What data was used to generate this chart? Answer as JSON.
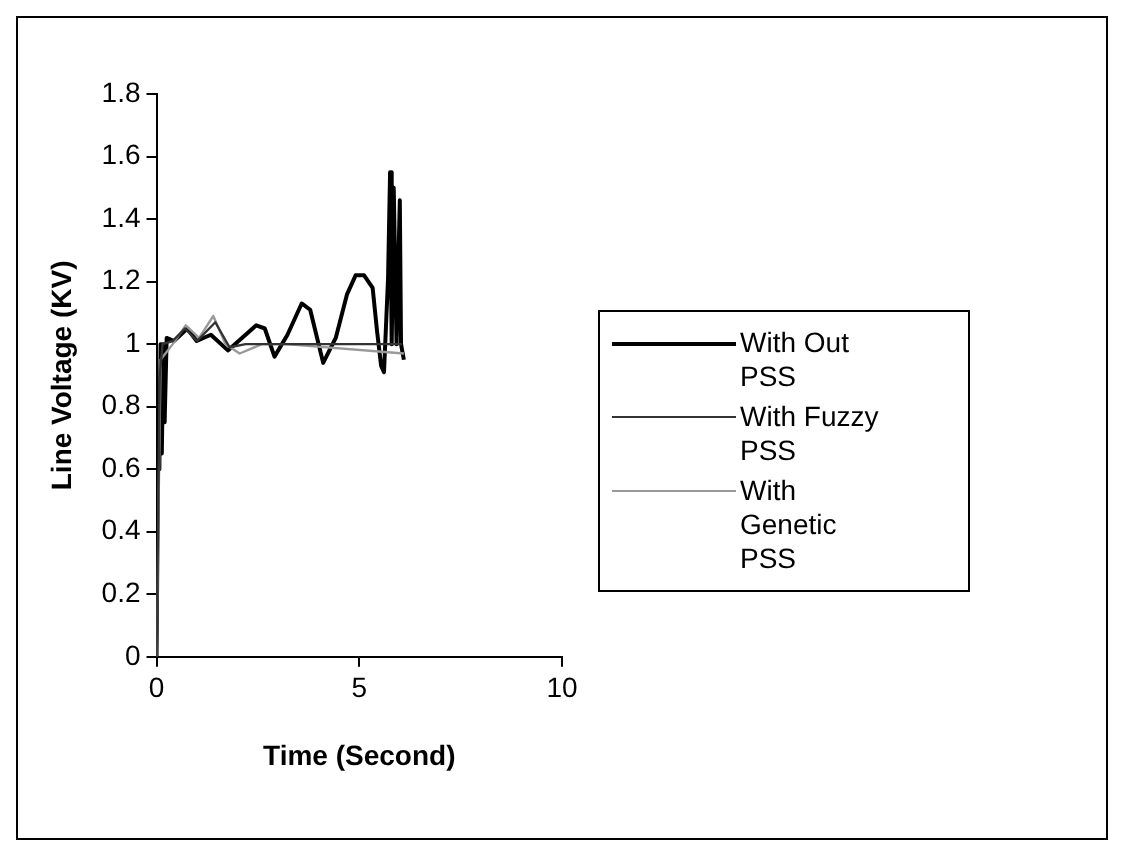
{
  "chart_data": {
    "type": "line",
    "xlabel": "Time (Second)",
    "ylabel": "Line Voltage (KV)",
    "xlim": [
      0,
      10
    ],
    "xticks": [
      0,
      5,
      10
    ],
    "ylim": [
      0,
      1.8
    ],
    "yticks": [
      0,
      0.2,
      0.4,
      0.6,
      0.8,
      1,
      1.2,
      1.4,
      1.6,
      1.8
    ],
    "grid": false,
    "legend": "right",
    "marker": "none",
    "series": [
      {
        "name": "With Out PSS",
        "color": "#000000",
        "x": [
          0,
          0.05,
          0.07,
          0.1,
          0.13,
          0.17,
          0.2,
          0.25,
          0.43,
          0.76,
          0.99,
          1.34,
          1.76,
          2.46,
          2.67,
          2.91,
          3.23,
          3.58,
          3.79,
          4.11,
          4.42,
          4.7,
          4.91,
          5.12,
          5.33,
          5.44,
          5.54,
          5.61,
          5.71,
          5.76,
          5.8,
          5.85,
          5.92,
          6.0,
          6.03,
          6.1
        ],
        "values": [
          0,
          0.8,
          0.6,
          1.0,
          0.65,
          1.0,
          0.75,
          1.02,
          1.01,
          1.05,
          1.01,
          1.03,
          0.98,
          1.06,
          1.05,
          0.96,
          1.03,
          1.13,
          1.11,
          0.94,
          1.02,
          1.16,
          1.22,
          1.22,
          1.18,
          1.04,
          0.93,
          0.91,
          1.21,
          1.55,
          1.0,
          1.5,
          1.0,
          1.46,
          1.0,
          0.95
        ]
      },
      {
        "name": "With Fuzzy PSS",
        "color": "#333333",
        "x": [
          0,
          0.08,
          0.15,
          0.4,
          0.7,
          1.0,
          1.45,
          1.8,
          2.2,
          3.0,
          6.05
        ],
        "values": [
          0,
          0.9,
          1.0,
          1.01,
          1.05,
          1.01,
          1.07,
          0.99,
          1.0,
          1.0,
          1.0
        ]
      },
      {
        "name": "With Genetic PSS",
        "color": "#999999",
        "x": [
          0,
          0.1,
          0.4,
          0.72,
          1.05,
          1.4,
          1.7,
          2.05,
          2.6,
          3.2,
          6.1
        ],
        "values": [
          0,
          0.95,
          1.0,
          1.06,
          1.02,
          1.09,
          1.0,
          0.97,
          1.0,
          1.0,
          0.97
        ]
      }
    ]
  }
}
